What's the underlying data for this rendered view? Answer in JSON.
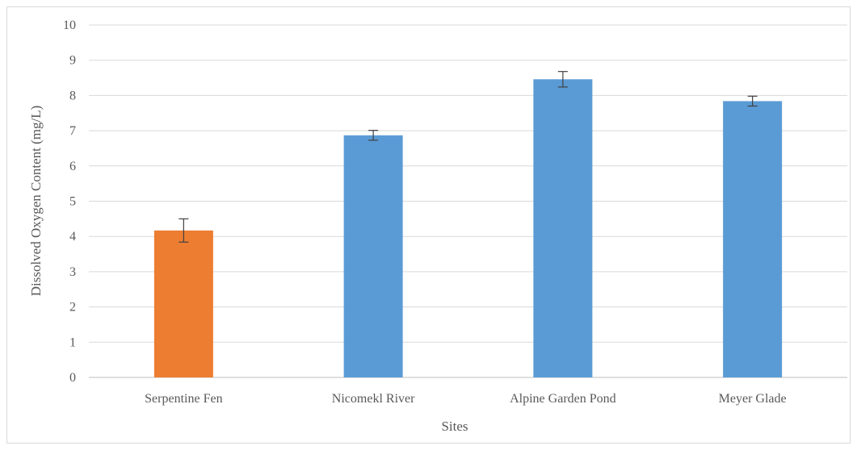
{
  "chart_data": {
    "type": "bar",
    "categories": [
      "Serpentine Fen",
      "Nicomekl River",
      "Alpine Garden Pond",
      "Meyer Glade"
    ],
    "values": [
      4.17,
      6.87,
      8.46,
      7.84
    ],
    "error": [
      0.33,
      0.14,
      0.22,
      0.14
    ],
    "colors": [
      "#ed7d31",
      "#5b9bd5",
      "#5b9bd5",
      "#5b9bd5"
    ],
    "xlabel": "Sites",
    "ylabel": "Dissolved Oxygen Content (mg/L)",
    "ylim": [
      0,
      10
    ],
    "yticks": [
      0,
      1,
      2,
      3,
      4,
      5,
      6,
      7,
      8,
      9,
      10
    ],
    "grid": true,
    "legend": "none"
  }
}
